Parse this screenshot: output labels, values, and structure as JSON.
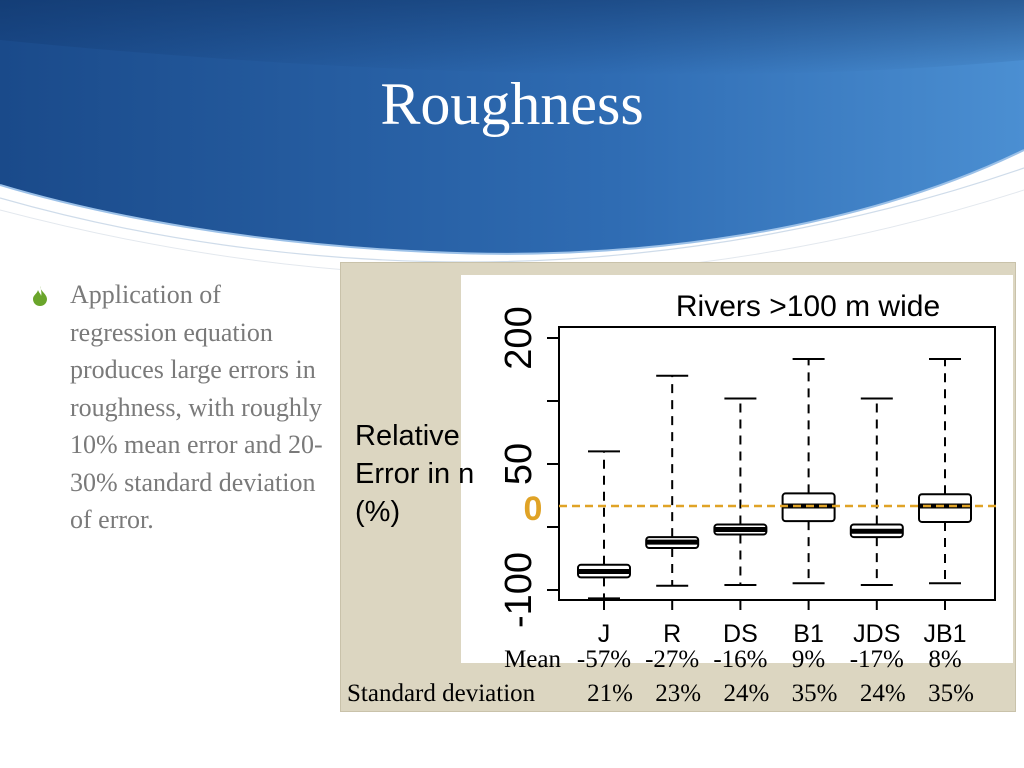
{
  "slide": {
    "title": "Roughness",
    "bullet": "Application of regression equation produces large errors in roughness, with roughly 10% mean error and 20-30% standard deviation of error.",
    "colors": {
      "header_dark": "#1c4f8f",
      "header_light": "#4d8ed0",
      "bullet": "#6aa52b",
      "text": "#7a7a7a",
      "panel": "#dcd6c1"
    },
    "bullet_icon": "flame-bullet-icon"
  },
  "chart_data": {
    "type": "boxplot",
    "title": "Rivers >100 m wide",
    "ylabel_lines": [
      "Relative",
      "Error in n",
      "(%)"
    ],
    "zero_label": "0",
    "y_ticks": [
      {
        "label": "200",
        "value": 200
      },
      {
        "label": "50",
        "value": 50
      },
      {
        "label": "-100",
        "value": -100
      }
    ],
    "ylim": [
      -100,
      200
    ],
    "categories": [
      "J",
      "R",
      "DS",
      "B1",
      "JDS",
      "JB1"
    ],
    "reference_line": {
      "value": 0,
      "color": "#e0a326",
      "style": "dashed"
    },
    "boxes": [
      {
        "category": "J",
        "whisker_low": -110,
        "q1": -85,
        "median": -78,
        "q3": -70,
        "whisker_high": 65
      },
      {
        "category": "R",
        "whisker_low": -95,
        "q1": -50,
        "median": -43,
        "q3": -37,
        "whisker_high": 155
      },
      {
        "category": "DS",
        "whisker_low": -94,
        "q1": -34,
        "median": -28,
        "q3": -22,
        "whisker_high": 128
      },
      {
        "category": "B1",
        "whisker_low": -92,
        "q1": -18,
        "median": 0,
        "q3": 15,
        "whisker_high": 175
      },
      {
        "category": "JDS",
        "whisker_low": -94,
        "q1": -37,
        "median": -30,
        "q3": -22,
        "whisker_high": 128
      },
      {
        "category": "JB1",
        "whisker_low": -92,
        "q1": -19,
        "median": 0,
        "q3": 14,
        "whisker_high": 175
      }
    ],
    "stats_table": {
      "mean_label": "Mean",
      "mean": [
        "-57%",
        "-27%",
        "-16%",
        "9%",
        "-17%",
        "8%"
      ],
      "sd_label": "Standard deviation",
      "sd": [
        "21%",
        "23%",
        "24%",
        "35%",
        "24%",
        "35%"
      ]
    },
    "grid": false,
    "legend": "none"
  }
}
